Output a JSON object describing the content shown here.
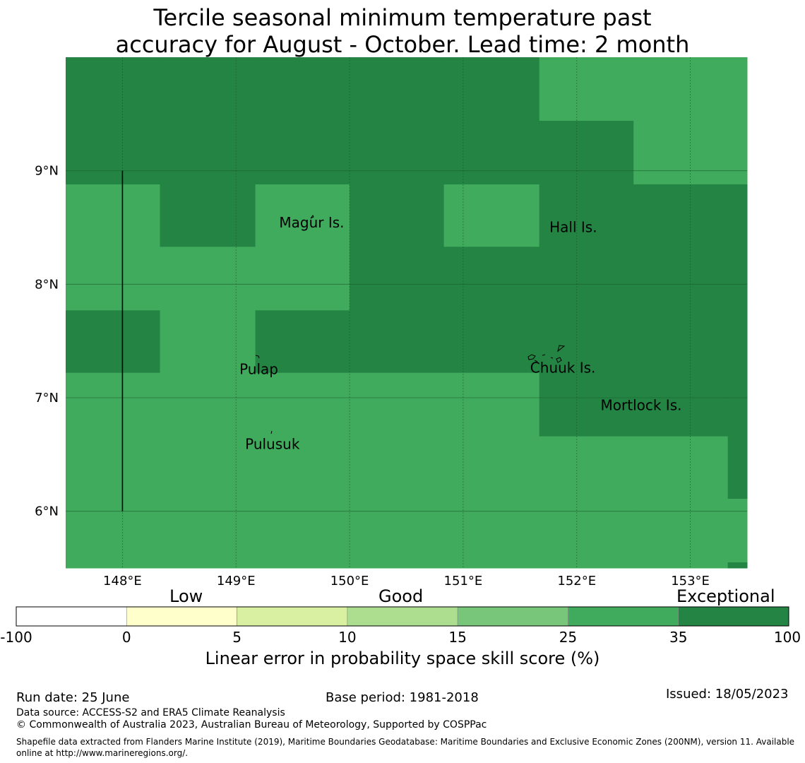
{
  "title": {
    "line1": "Tercile seasonal minimum temperature past",
    "line2": "accuracy for August - October. Lead time: 2 month"
  },
  "map": {
    "lon_range": [
      147.5,
      153.5
    ],
    "lat_range": [
      5.5,
      10.0
    ],
    "lon_ticks": [
      {
        "value": 148,
        "label": "148°E"
      },
      {
        "value": 149,
        "label": "149°E"
      },
      {
        "value": 150,
        "label": "150°E"
      },
      {
        "value": 151,
        "label": "151°E"
      },
      {
        "value": 152,
        "label": "152°E"
      },
      {
        "value": 153,
        "label": "153°E"
      }
    ],
    "lat_ticks": [
      {
        "value": 9,
        "label": "9°N"
      },
      {
        "value": 8,
        "label": "8°N"
      },
      {
        "value": 7,
        "label": "7°N"
      },
      {
        "value": 6,
        "label": "6°N"
      }
    ],
    "category_colors": {
      "good": "#41ab5d",
      "exceptional": "#238443"
    },
    "rows": [
      {
        "lat_top": 10.0,
        "lat_bottom": 9.44,
        "cells": [
          "E",
          "E",
          "E",
          "E",
          "E",
          "G",
          "G",
          "G"
        ]
      },
      {
        "lat_top": 9.44,
        "lat_bottom": 8.88,
        "cells": [
          "E",
          "E",
          "E",
          "E",
          "E",
          "E",
          "G",
          "G"
        ]
      },
      {
        "lat_top": 8.88,
        "lat_bottom": 8.33,
        "cells": [
          "G",
          "E",
          "G",
          "E",
          "G",
          "E",
          "E",
          "E"
        ]
      },
      {
        "lat_top": 8.33,
        "lat_bottom": 7.77,
        "cells": [
          "G",
          "G",
          "G",
          "E",
          "E",
          "E",
          "E",
          "E"
        ]
      },
      {
        "lat_top": 7.77,
        "lat_bottom": 7.22,
        "cells": [
          "E",
          "G",
          "E",
          "E",
          "E",
          "E",
          "E",
          "E"
        ]
      },
      {
        "lat_top": 7.22,
        "lat_bottom": 6.66,
        "cells": [
          "G",
          "G",
          "G",
          "G",
          "G",
          "E",
          "E",
          "E"
        ]
      },
      {
        "lat_top": 6.66,
        "lat_bottom": 6.11,
        "cells": [
          "G",
          "G",
          "G",
          "G",
          "G",
          "G",
          "G",
          "E"
        ]
      },
      {
        "lat_top": 6.11,
        "lat_bottom": 5.55,
        "cells": [
          "G",
          "G",
          "G",
          "G",
          "G",
          "G",
          "G",
          "G"
        ]
      },
      {
        "lat_top": 5.55,
        "lat_bottom": 5.5,
        "cells": [
          "G",
          "G",
          "G",
          "G",
          "G",
          "G",
          "G",
          "E"
        ]
      }
    ],
    "col_lon_edges": [
      147.5,
      148.33,
      149.17,
      150.0,
      150.83,
      151.67,
      152.5,
      153.33,
      153.5
    ],
    "places": [
      {
        "name": "Magur Is.",
        "lon": 149.38,
        "lat": 8.5
      },
      {
        "name": "Hall Is.",
        "lon": 151.76,
        "lat": 8.46
      },
      {
        "name": "Pulap",
        "lon": 149.03,
        "lat": 7.21
      },
      {
        "name": "Chuuk Is.",
        "lon": 151.59,
        "lat": 7.22
      },
      {
        "name": "Mortlock Is.",
        "lon": 152.21,
        "lat": 6.89
      },
      {
        "name": "Pulusuk",
        "lon": 149.08,
        "lat": 6.55
      }
    ],
    "boundary_line": {
      "lon": 148.0,
      "lat_from": 9.0,
      "lat_to": 6.0
    }
  },
  "colorbar": {
    "categories": [
      {
        "label": "Low",
        "center_value": 0
      },
      {
        "label": "Good",
        "center_value": 10
      },
      {
        "label": "Exceptional",
        "center_value": 35
      }
    ],
    "bins": [
      {
        "from": "-100",
        "to": "0",
        "color": "#ffffff"
      },
      {
        "from": "0",
        "to": "5",
        "color": "#ffffcc"
      },
      {
        "from": "5",
        "to": "10",
        "color": "#d9f0a3"
      },
      {
        "from": "10",
        "to": "15",
        "color": "#addd8e"
      },
      {
        "from": "15",
        "to": "25",
        "color": "#78c679"
      },
      {
        "from": "25",
        "to": "35",
        "color": "#41ab5d"
      },
      {
        "from": "35",
        "to": "100",
        "color": "#238443"
      }
    ],
    "tick_labels": [
      "-100",
      "0",
      "5",
      "10",
      "15",
      "25",
      "35",
      "100"
    ],
    "xlabel": "Linear error in probability space skill score (%)"
  },
  "footer": {
    "run_date": "Run date: 25 June",
    "base_period": "Base period: 1981-2018",
    "issued": "Issued: 18/05/2023",
    "data_source": "Data source: ACCESS-S2 and ERA5 Climate Reanalysis",
    "copyright": "© Commonwealth of Australia 2023, Australian Bureau of Meteorology, Supported by COSPPac",
    "shapefile": "Shapefile data extracted from Flanders Marine Institute (2019), Maritime Boundaries Geodatabase: Maritime Boundaries and Exclusive Economic Zones (200NM), version 11. Available online at http://www.marineregions.org/."
  }
}
